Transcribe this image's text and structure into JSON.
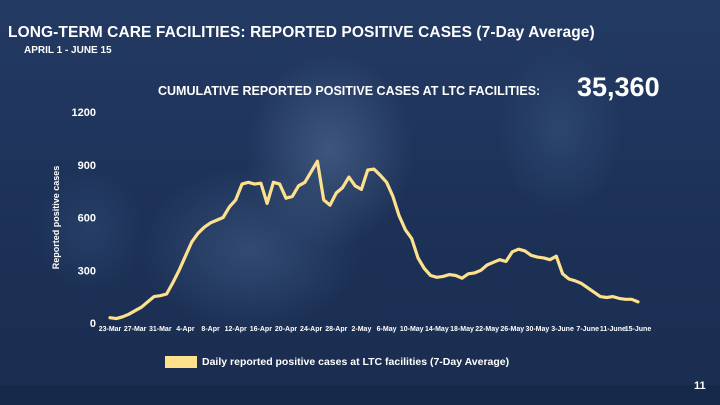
{
  "header": {
    "title": "LONG-TERM CARE FACILITIES: REPORTED POSITIVE CASES (7-Day Average)",
    "subtitle": "APRIL 1 - JUNE 15"
  },
  "cumulative": {
    "label": "CUMULATIVE REPORTED POSITIVE CASES AT LTC FACILITIES:",
    "value": "35,360"
  },
  "page_number": "11",
  "colors": {
    "line": "#fde18c",
    "background": "#1f3358",
    "text": "#ffffff"
  },
  "chart_data": {
    "type": "line",
    "title": "LONG-TERM CARE FACILITIES: REPORTED POSITIVE CASES (7-Day Average)",
    "xlabel": "",
    "ylabel": "Reported positive cases",
    "ylim": [
      0,
      1200
    ],
    "yticks": [
      "0",
      "300",
      "600",
      "900",
      "1200"
    ],
    "xtick_labels": [
      "23-Mar",
      "27-Mar",
      "31-Mar",
      "4-Apr",
      "8-Apr",
      "12-Apr",
      "16-Apr",
      "20-Apr",
      "24-Apr",
      "28-Apr",
      "2-May",
      "6-May",
      "10-May",
      "14-May",
      "18-May",
      "22-May",
      "26-May",
      "30-May",
      "3-June",
      "7-June",
      "11-June",
      "15-June"
    ],
    "grid": false,
    "legend": "bottom",
    "series": [
      {
        "name": "Daily reported positive cases at LTC facilities (7-Day Average)",
        "start_date": "2020-03-23",
        "values": [
          30,
          25,
          35,
          50,
          70,
          90,
          120,
          150,
          155,
          165,
          230,
          300,
          380,
          460,
          510,
          545,
          570,
          585,
          600,
          660,
          700,
          790,
          800,
          790,
          795,
          680,
          800,
          790,
          710,
          720,
          780,
          800,
          860,
          920,
          700,
          670,
          740,
          770,
          830,
          780,
          760,
          870,
          875,
          840,
          800,
          720,
          610,
          530,
          480,
          370,
          310,
          270,
          260,
          265,
          275,
          270,
          255,
          280,
          285,
          300,
          330,
          345,
          360,
          350,
          405,
          420,
          410,
          385,
          375,
          370,
          360,
          380,
          280,
          250,
          240,
          225,
          200,
          175,
          150,
          145,
          150,
          140,
          135,
          135,
          120
        ]
      }
    ]
  },
  "legend": {
    "label": "Daily reported positive cases at LTC facilities (7-Day Average)"
  }
}
